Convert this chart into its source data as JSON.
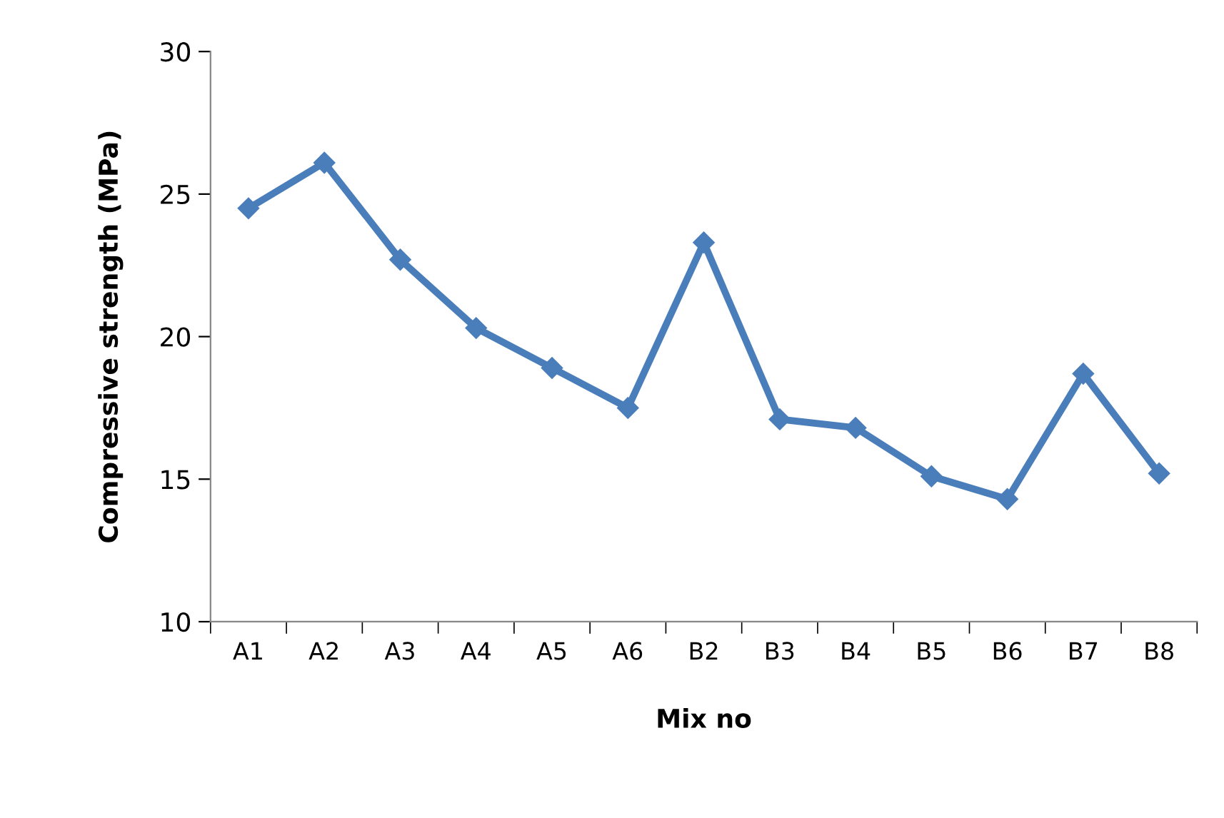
{
  "chart_data": {
    "type": "line",
    "xlabel": "Mix no",
    "ylabel": "Compressive strength (MPa)",
    "categories": [
      "A1",
      "A2",
      "A3",
      "A4",
      "A5",
      "A6",
      "B2",
      "B3",
      "B4",
      "B5",
      "B6",
      "B7",
      "B8"
    ],
    "series": [
      {
        "color": "#4a7ebb",
        "values": [
          24.5,
          26.1,
          22.7,
          20.3,
          18.9,
          17.5,
          23.3,
          17.1,
          16.8,
          15.1,
          14.3,
          18.7,
          15.2
        ]
      }
    ],
    "ylim": [
      10,
      30
    ],
    "yticks": [
      10,
      15,
      20,
      25,
      30
    ],
    "marker": "diamond",
    "line_style": "solid",
    "grid": false,
    "legend": false
  }
}
